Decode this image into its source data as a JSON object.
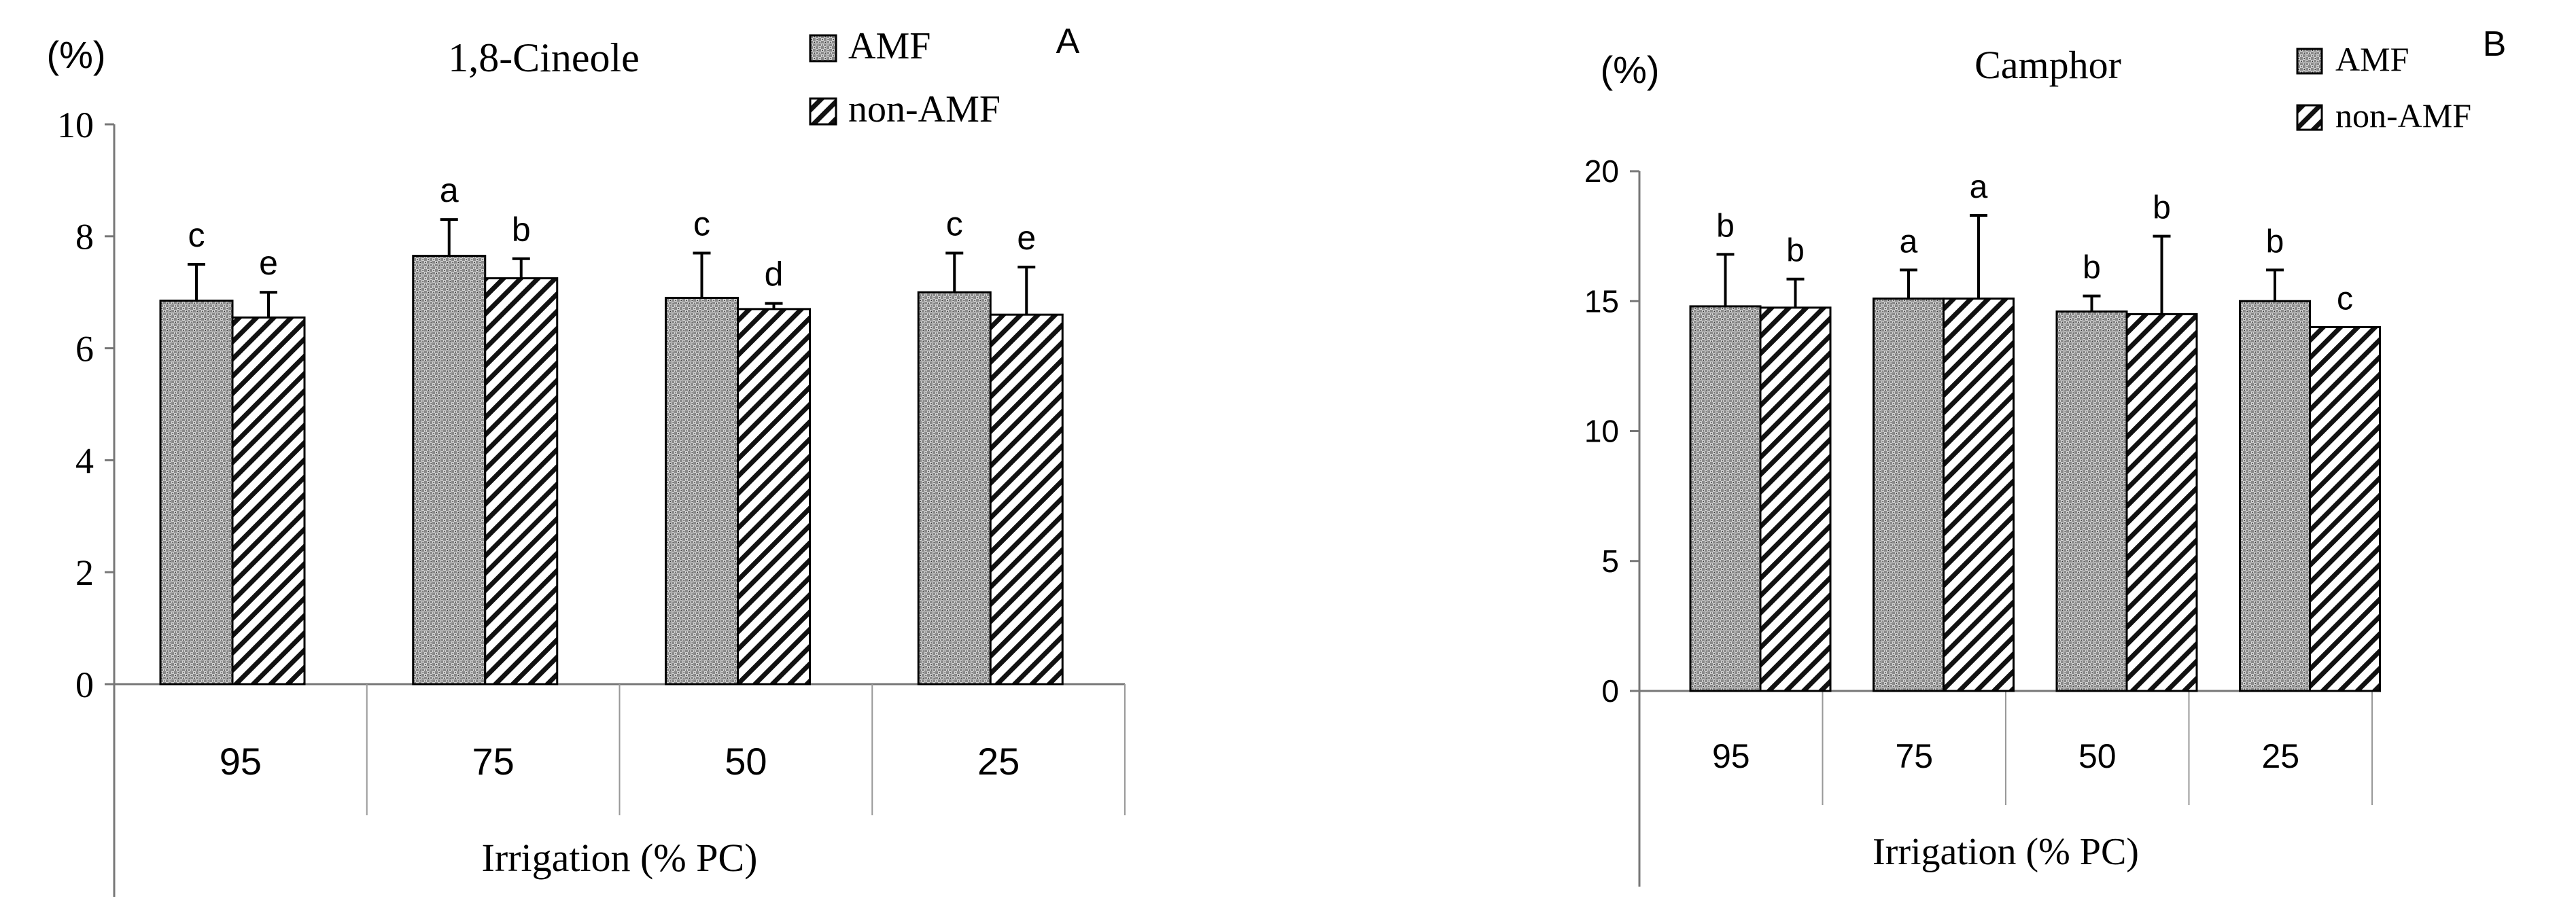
{
  "chart_data": [
    {
      "type": "bar",
      "panel_label": "A",
      "title": "1,8-Cineole",
      "y_unit_label": "(%)",
      "xlabel": "Irrigation (% PC)",
      "ylabel": "",
      "ylim": [
        0,
        10
      ],
      "yticks": [
        0,
        2,
        4,
        6,
        8,
        10
      ],
      "categories": [
        "95",
        "75",
        "50",
        "25"
      ],
      "legend_position": "top-right",
      "series": [
        {
          "name": "AMF",
          "values": [
            6.85,
            7.65,
            6.9,
            7.0
          ],
          "error": [
            0.65,
            0.65,
            0.8,
            0.7
          ],
          "letters": [
            "c",
            "a",
            "c",
            "c"
          ]
        },
        {
          "name": "non-AMF",
          "values": [
            6.55,
            7.25,
            6.7,
            6.6
          ],
          "error": [
            0.45,
            0.35,
            0.1,
            0.85
          ],
          "letters": [
            "e",
            "b",
            "d",
            "e"
          ]
        }
      ]
    },
    {
      "type": "bar",
      "panel_label": "B",
      "title": "Camphor",
      "y_unit_label": "(%)",
      "xlabel": "Irrigation (% PC)",
      "ylabel": "",
      "ylim": [
        0,
        20
      ],
      "yticks": [
        0,
        5,
        10,
        15,
        20
      ],
      "categories": [
        "95",
        "75",
        "50",
        "25"
      ],
      "legend_position": "top-right",
      "series": [
        {
          "name": "AMF",
          "values": [
            14.8,
            15.1,
            14.6,
            15.0
          ],
          "error": [
            2.0,
            1.1,
            0.6,
            1.2
          ],
          "letters": [
            "b",
            "a",
            "b",
            "b"
          ]
        },
        {
          "name": "non-AMF",
          "values": [
            14.75,
            15.1,
            14.5,
            14.0
          ],
          "error": [
            1.1,
            3.2,
            3.0,
            0.0
          ],
          "letters": [
            "b",
            "a",
            "b",
            "c"
          ]
        }
      ]
    }
  ]
}
